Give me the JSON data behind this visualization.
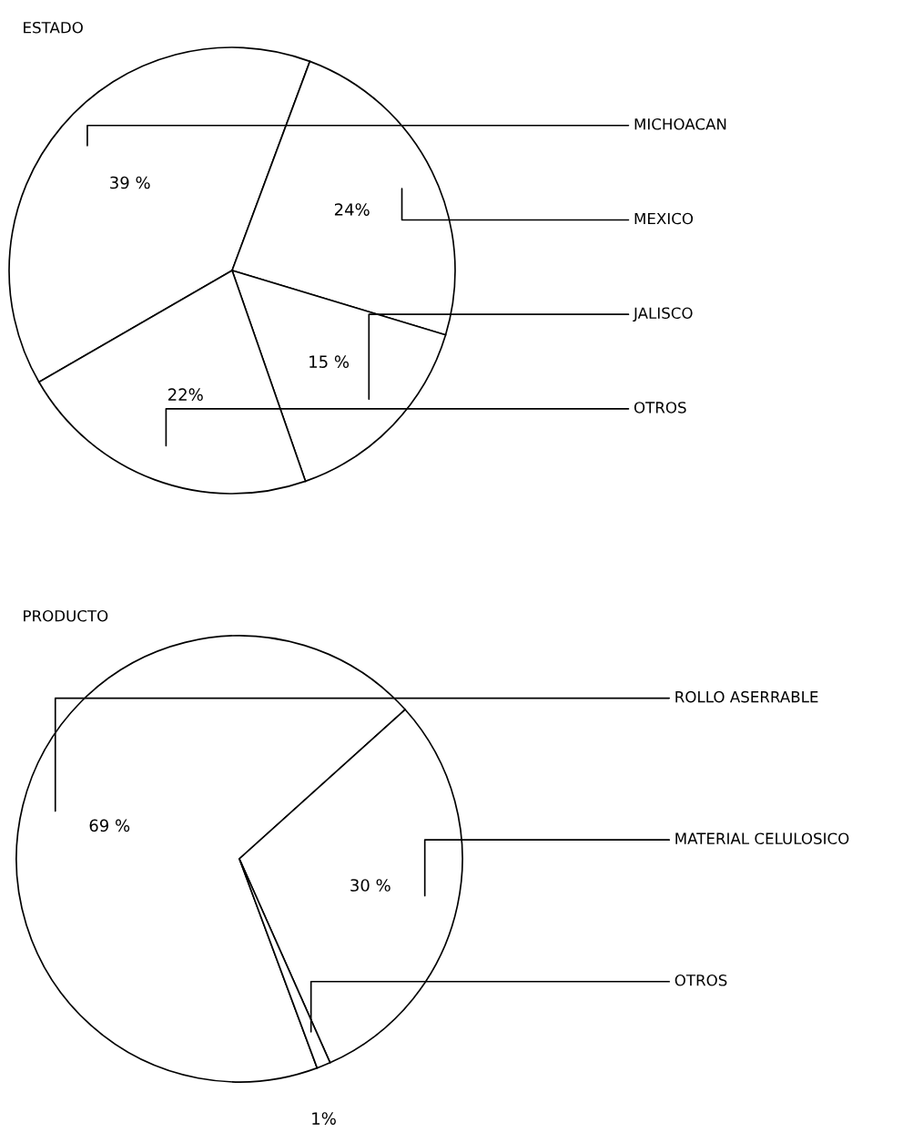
{
  "chart_data": [
    {
      "type": "pie",
      "title": "ESTADO",
      "categories": [
        "MICHOACAN",
        "MEXICO",
        "JALISCO",
        "OTROS"
      ],
      "values": [
        39,
        24,
        15,
        22
      ],
      "colors": [
        "#ffffff",
        "#ffffff",
        "#ffffff",
        "#ffffff"
      ],
      "value_labels": [
        "39 %",
        "24%",
        "15 %",
        "22%"
      ]
    },
    {
      "type": "pie",
      "title": "PRODUCTO",
      "categories": [
        "ROLLO ASERRABLE",
        "MATERIAL CELULOSICO",
        "OTROS"
      ],
      "values": [
        69,
        30,
        1
      ],
      "colors": [
        "#ffffff",
        "#ffffff",
        "#ffffff"
      ],
      "value_labels": [
        "69 %",
        "30 %",
        "1%"
      ]
    }
  ]
}
